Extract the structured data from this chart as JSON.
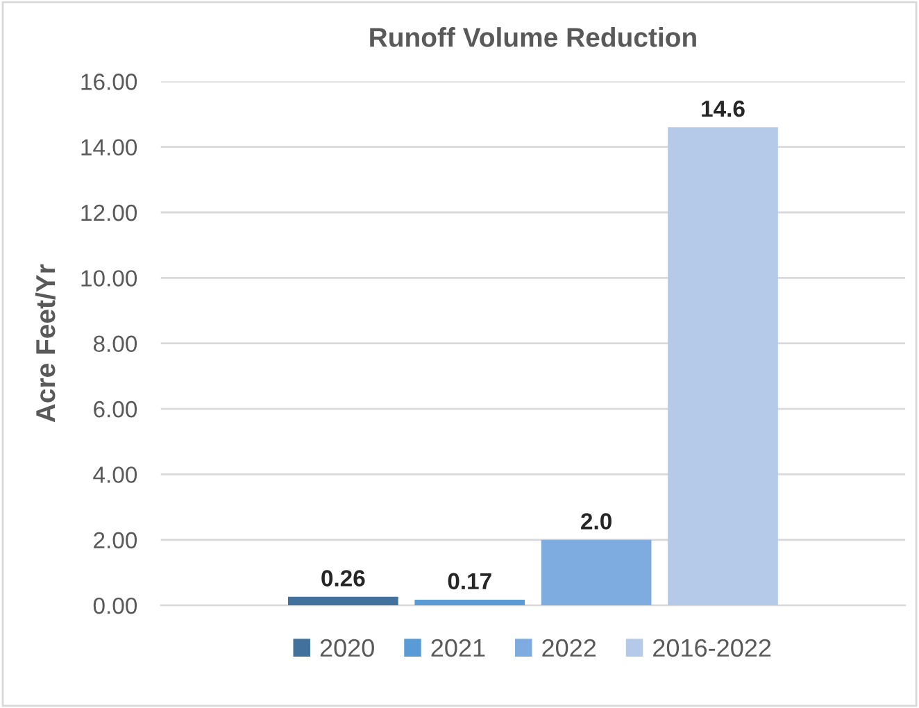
{
  "chart_data": {
    "type": "bar",
    "title": "Runoff Volume Reduction",
    "ylabel": "Acre Feet/Yr",
    "categories": [
      null,
      null,
      null,
      null
    ],
    "series": [
      {
        "name": "2020",
        "color": "#41719c",
        "values": [
          0.26,
          null,
          null,
          null
        ],
        "value_labels": [
          "0.26",
          null,
          null,
          null
        ]
      },
      {
        "name": "2021",
        "color": "#5b9bd5",
        "values": [
          null,
          0.17,
          null,
          null
        ],
        "value_labels": [
          null,
          "0.17",
          null,
          null
        ]
      },
      {
        "name": "2022",
        "color": "#7face0",
        "values": [
          null,
          null,
          2.0,
          null
        ],
        "value_labels": [
          null,
          null,
          "2.0",
          null
        ]
      },
      {
        "name": "2016-2022",
        "color": "#b4cae8",
        "values": [
          null,
          null,
          null,
          14.6
        ],
        "value_labels": [
          null,
          null,
          null,
          "14.6"
        ]
      }
    ],
    "ylim": [
      0,
      16
    ],
    "yticks": [
      {
        "value": 0,
        "label": "0.00"
      },
      {
        "value": 2,
        "label": "2.00"
      },
      {
        "value": 4,
        "label": "4.00"
      },
      {
        "value": 6,
        "label": "6.00"
      },
      {
        "value": 8,
        "label": "8.00"
      },
      {
        "value": 10,
        "label": "10.00"
      },
      {
        "value": 12,
        "label": "12.00"
      },
      {
        "value": 14,
        "label": "14.00"
      },
      {
        "value": 16,
        "label": "16.00"
      }
    ],
    "grid": "y",
    "legend": "bottom"
  }
}
